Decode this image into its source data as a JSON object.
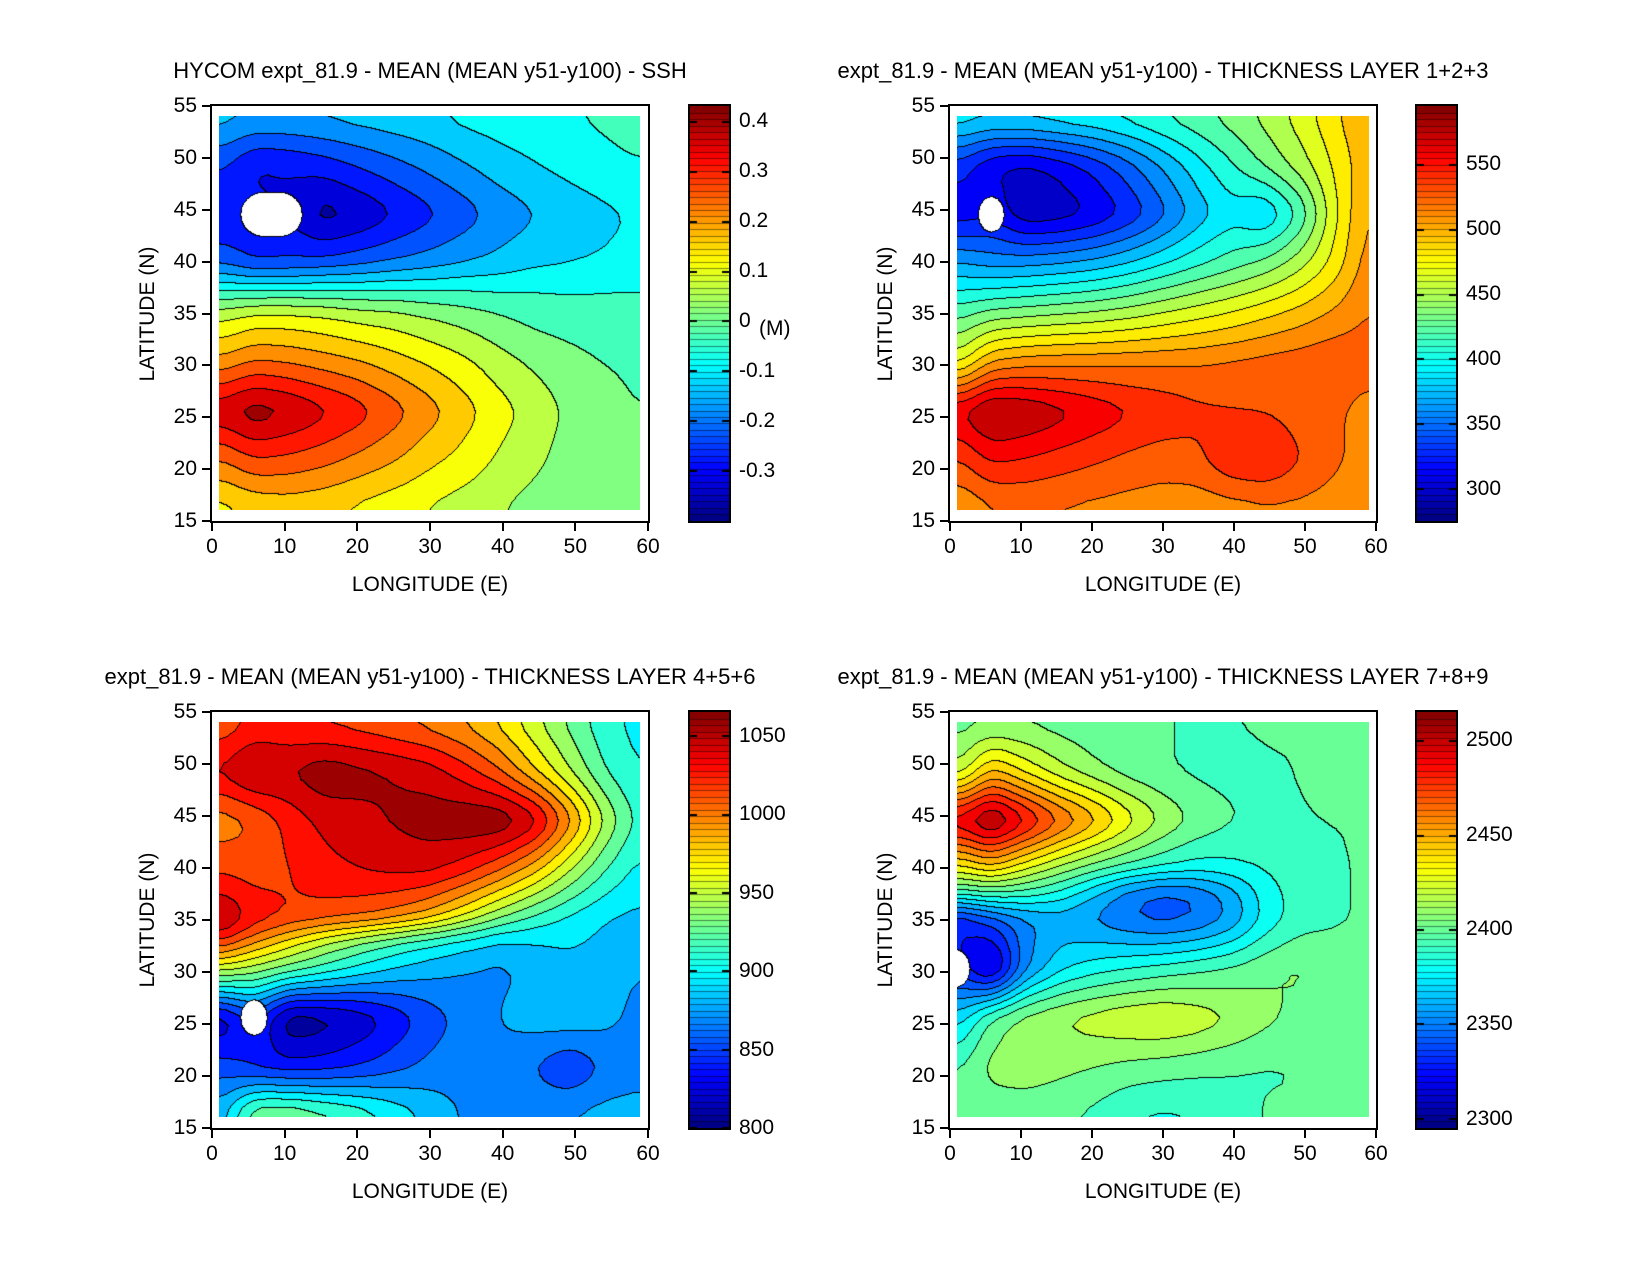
{
  "figure": {
    "background": "#ffffff",
    "axis_color": "#000000",
    "contour_line_color": "#000000",
    "colormap": "jet"
  },
  "chart_data": [
    {
      "id": "ssh",
      "type": "contour",
      "title": "HYCOM expt_81.9 - MEAN (MEAN y51-y100) - SSH",
      "xlabel": "LONGITUDE (E)",
      "ylabel": "LATITUDE (N)",
      "xlim": [
        0,
        60
      ],
      "ylim": [
        15,
        55
      ],
      "xtick_values": [
        0,
        10,
        20,
        30,
        40,
        50,
        60
      ],
      "xtick_labels": [
        "0",
        "10",
        "20",
        "30",
        "40",
        "50",
        "60"
      ],
      "ytick_values": [
        15,
        20,
        25,
        30,
        35,
        40,
        45,
        50,
        55
      ],
      "ytick_labels": [
        "15",
        "20",
        "25",
        "30",
        "35",
        "40",
        "45",
        "50",
        "55"
      ],
      "lon": [
        0,
        5,
        10,
        15,
        20,
        25,
        30,
        35,
        40,
        45,
        50,
        55,
        60
      ],
      "lat": [
        55,
        50,
        45,
        40,
        38,
        35,
        30,
        25,
        20,
        15
      ],
      "values": [
        [
          -0.13,
          -0.15,
          -0.15,
          -0.14,
          -0.13,
          -0.12,
          -0.11,
          -0.09,
          -0.08,
          -0.07,
          -0.06,
          -0.05,
          -0.04
        ],
        [
          -0.24,
          -0.31,
          -0.3,
          -0.28,
          -0.25,
          -0.22,
          -0.19,
          -0.16,
          -0.13,
          -0.11,
          -0.09,
          -0.07,
          -0.06
        ],
        [
          -0.31,
          null,
          null,
          -0.38,
          -0.35,
          -0.31,
          -0.27,
          -0.23,
          -0.19,
          -0.16,
          -0.14,
          -0.12,
          -0.1
        ],
        [
          -0.21,
          -0.26,
          -0.25,
          -0.24,
          -0.22,
          -0.2,
          -0.18,
          -0.16,
          -0.14,
          -0.12,
          -0.11,
          -0.1,
          -0.09
        ],
        [
          -0.1,
          -0.11,
          -0.11,
          -0.1,
          -0.1,
          -0.09,
          -0.09,
          -0.08,
          -0.08,
          -0.07,
          -0.07,
          -0.06,
          -0.06
        ],
        [
          0.06,
          0.09,
          0.09,
          0.08,
          0.06,
          0.05,
          0.03,
          0.01,
          -0.01,
          -0.03,
          -0.04,
          -0.05,
          -0.05
        ],
        [
          0.2,
          0.24,
          0.23,
          0.21,
          0.19,
          0.16,
          0.13,
          0.1,
          0.06,
          0.03,
          0.01,
          -0.01,
          -0.02
        ],
        [
          0.37,
          0.42,
          0.39,
          0.35,
          0.31,
          0.26,
          0.21,
          0.16,
          0.11,
          0.07,
          0.03,
          0.01,
          -0.01
        ],
        [
          0.23,
          0.28,
          0.27,
          0.25,
          0.22,
          0.19,
          0.15,
          0.12,
          0.08,
          0.05,
          0.02,
          0.01,
          0.0
        ],
        [
          0.11,
          0.14,
          0.15,
          0.14,
          0.12,
          0.1,
          0.08,
          0.06,
          0.04,
          0.02,
          0.01,
          0.01,
          0.01
        ]
      ],
      "vmin": -0.4,
      "vmax": 0.43,
      "level_step": 0.05,
      "colorbar": {
        "tick_values": [
          0.4,
          0.3,
          0.2,
          0.1,
          0,
          -0.1,
          -0.2,
          -0.3
        ],
        "tick_labels": [
          "0.4",
          "0.3",
          "0.2",
          "0.1",
          "0",
          "-0.1",
          "-0.2",
          "-0.3"
        ],
        "label": "(M)"
      }
    },
    {
      "id": "thickness-layer-1-2-3",
      "type": "contour",
      "title": "expt_81.9 - MEAN (MEAN y51-y100) - THICKNESS LAYER 1+2+3",
      "xlabel": "LONGITUDE (E)",
      "ylabel": "LATITUDE (N)",
      "xlim": [
        0,
        60
      ],
      "ylim": [
        15,
        55
      ],
      "xtick_values": [
        0,
        10,
        20,
        30,
        40,
        50,
        60
      ],
      "xtick_labels": [
        "0",
        "10",
        "20",
        "30",
        "40",
        "50",
        "60"
      ],
      "ytick_values": [
        15,
        20,
        25,
        30,
        35,
        40,
        45,
        50,
        55
      ],
      "ytick_labels": [
        "15",
        "20",
        "25",
        "30",
        "35",
        "40",
        "45",
        "50",
        "55"
      ],
      "lon": [
        0,
        5,
        10,
        15,
        20,
        25,
        30,
        35,
        40,
        45,
        50,
        55,
        60
      ],
      "lat": [
        55,
        50,
        45,
        40,
        35,
        30,
        25,
        20,
        15
      ],
      "values": [
        [
          395,
          390,
          392,
          396,
          400,
          406,
          415,
          424,
          435,
          448,
          465,
          485,
          505
        ],
        [
          330,
          305,
          300,
          310,
          325,
          345,
          368,
          390,
          410,
          430,
          450,
          475,
          500
        ],
        [
          310,
          null,
          292,
          295,
          305,
          322,
          345,
          372,
          390,
          378,
          412,
          468,
          508
        ],
        [
          368,
          360,
          362,
          366,
          372,
          382,
          395,
          408,
          420,
          432,
          452,
          478,
          512
        ],
        [
          420,
          432,
          436,
          440,
          444,
          450,
          458,
          466,
          474,
          484,
          494,
          506,
          520
        ],
        [
          465,
          505,
          512,
          514,
          515,
          516,
          517,
          518,
          521,
          525,
          528,
          532,
          526
        ],
        [
          565,
          588,
          582,
          572,
          562,
          552,
          545,
          538,
          535,
          533,
          528,
          522,
          512
        ],
        [
          532,
          552,
          548,
          542,
          536,
          530,
          526,
          530,
          548,
          552,
          535,
          522,
          512
        ],
        [
          502,
          515,
          518,
          516,
          514,
          512,
          510,
          508,
          510,
          513,
          514,
          511,
          506
        ]
      ],
      "vmin": 275,
      "vmax": 595,
      "level_step": 15,
      "colorbar": {
        "tick_values": [
          550,
          500,
          450,
          400,
          350,
          300
        ],
        "tick_labels": [
          "550",
          "500",
          "450",
          "400",
          "350",
          "300"
        ],
        "label": ""
      }
    },
    {
      "id": "thickness-layer-4-5-6",
      "type": "contour",
      "title": "expt_81.9 - MEAN (MEAN y51-y100) - THICKNESS LAYER 4+5+6",
      "xlabel": "LONGITUDE (E)",
      "ylabel": "LATITUDE (N)",
      "xlim": [
        0,
        60
      ],
      "ylim": [
        15,
        55
      ],
      "xtick_values": [
        0,
        10,
        20,
        30,
        40,
        50,
        60
      ],
      "xtick_labels": [
        "0",
        "10",
        "20",
        "30",
        "40",
        "50",
        "60"
      ],
      "ytick_values": [
        15,
        20,
        25,
        30,
        35,
        40,
        45,
        50,
        55
      ],
      "ytick_labels": [
        "15",
        "20",
        "25",
        "30",
        "35",
        "40",
        "45",
        "50",
        "55"
      ],
      "lon": [
        0,
        5,
        10,
        15,
        20,
        25,
        30,
        35,
        40,
        45,
        50,
        55,
        60
      ],
      "lat": [
        55,
        50,
        45,
        40,
        35,
        33,
        30,
        25,
        20,
        15
      ],
      "values": [
        [
          1008,
          1022,
          1020,
          1016,
          1012,
          1006,
          998,
          988,
          972,
          950,
          928,
          908,
          898
        ],
        [
          1038,
          1058,
          1052,
          1062,
          1056,
          1050,
          1044,
          1028,
          1008,
          978,
          948,
          918,
          902
        ],
        [
          996,
          1006,
          1026,
          1040,
          1046,
          1052,
          1058,
          1063,
          1066,
          1048,
          1000,
          948,
          912
        ],
        [
          1018,
          1014,
          1020,
          1030,
          1036,
          1040,
          1040,
          1028,
          1008,
          982,
          948,
          918,
          898
        ],
        [
          1058,
          1032,
          1020,
          1014,
          1008,
          998,
          982,
          958,
          932,
          912,
          898,
          888,
          884
        ],
        [
          1030,
          1000,
          975,
          952,
          935,
          920,
          908,
          898,
          888,
          890,
          892,
          886,
          878
        ],
        [
          955,
          942,
          928,
          914,
          900,
          888,
          880,
          874,
          870,
          877,
          883,
          879,
          874
        ],
        [
          812,
          null,
          800,
          806,
          816,
          832,
          850,
          864,
          874,
          881,
          885,
          879,
          869
        ],
        [
          852,
          838,
          833,
          836,
          843,
          853,
          863,
          868,
          870,
          858,
          843,
          860,
          866
        ],
        [
          880,
          938,
          940,
          930,
          918,
          902,
          886,
          872,
          866,
          870,
          876,
          880,
          882
        ]
      ],
      "vmin": 800,
      "vmax": 1065,
      "level_step": 15,
      "colorbar": {
        "tick_values": [
          1050,
          1000,
          950,
          900,
          850,
          800
        ],
        "tick_labels": [
          "1050",
          "1000",
          "950",
          "900",
          "850",
          "800"
        ],
        "label": ""
      }
    },
    {
      "id": "thickness-layer-7-8-9",
      "type": "contour",
      "title": "expt_81.9 - MEAN (MEAN y51-y100) - THICKNESS LAYER 7+8+9",
      "xlabel": "LONGITUDE (E)",
      "ylabel": "LATITUDE (N)",
      "xlim": [
        0,
        60
      ],
      "ylim": [
        15,
        55
      ],
      "xtick_values": [
        0,
        10,
        20,
        30,
        40,
        50,
        60
      ],
      "xtick_labels": [
        "0",
        "10",
        "20",
        "30",
        "40",
        "50",
        "60"
      ],
      "ytick_values": [
        15,
        20,
        25,
        30,
        35,
        40,
        45,
        50,
        55
      ],
      "ytick_labels": [
        "15",
        "20",
        "25",
        "30",
        "35",
        "40",
        "45",
        "50",
        "55"
      ],
      "lon": [
        0,
        5,
        10,
        15,
        20,
        25,
        30,
        35,
        40,
        45,
        50,
        55,
        60
      ],
      "lat": [
        55,
        50,
        45,
        40,
        38,
        35,
        30,
        25,
        20,
        15
      ],
      "values": [
        [
          2400,
          2402,
          2402,
          2400,
          2397,
          2396,
          2395,
          2395,
          2395,
          2396,
          2396,
          2397,
          2397
        ],
        [
          2415,
          2448,
          2432,
          2418,
          2408,
          2400,
          2396,
          2393,
          2392,
          2394,
          2395,
          2407,
          2397
        ],
        [
          2495,
          2515,
          2492,
          2470,
          2452,
          2432,
          2415,
          2403,
          2396,
          2393,
          2393,
          2395,
          2396
        ],
        [
          2428,
          2440,
          2424,
          2410,
          2398,
          2390,
          2384,
          2380,
          2382,
          2386,
          2391,
          2394,
          2396
        ],
        [
          2398,
          2402,
          2396,
          2385,
          2368,
          2350,
          2342,
          2346,
          2360,
          2380,
          2390,
          2394,
          2396
        ],
        [
          2322,
          2338,
          2352,
          2358,
          2352,
          2344,
          2340,
          2344,
          2356,
          2378,
          2390,
          2394,
          2396
        ],
        [
          null,
          2302,
          2352,
          2372,
          2380,
          2385,
          2389,
          2393,
          2397,
          2403,
          2407,
          2400,
          2396
        ],
        [
          2368,
          2398,
          2410,
          2416,
          2421,
          2425,
          2427,
          2423,
          2416,
          2408,
          2402,
          2398,
          2396
        ],
        [
          2394,
          2409,
          2411,
          2408,
          2405,
          2402,
          2400,
          2398,
          2396,
          2394,
          2395,
          2396,
          2396
        ],
        [
          2396,
          2398,
          2398,
          2396,
          2392,
          2384,
          2382,
          2384,
          2390,
          2396,
          2396,
          2396,
          2396
        ]
      ],
      "vmin": 2295,
      "vmax": 2515,
      "level_step": 10,
      "colorbar": {
        "tick_values": [
          2500,
          2450,
          2400,
          2350,
          2300
        ],
        "tick_labels": [
          "2500",
          "2450",
          "2400",
          "2350",
          "2300"
        ],
        "label": ""
      }
    }
  ]
}
